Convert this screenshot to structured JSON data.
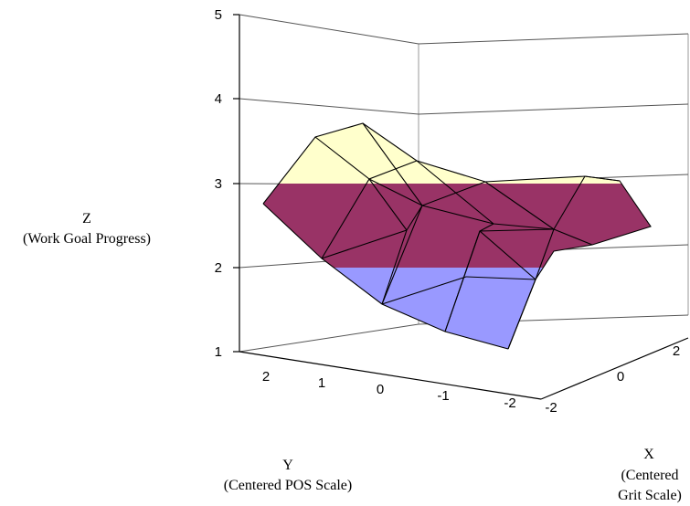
{
  "chart_data": {
    "type": "surface",
    "z_axis": {
      "title_line1": "Z",
      "title_line2": "(Work Goal Progress)",
      "ticks": [
        "1",
        "2",
        "3",
        "4",
        "5"
      ],
      "range": [
        1,
        5
      ]
    },
    "y_axis": {
      "title_line1": "Y",
      "title_line2": "(Centered POS Scale)",
      "ticks": [
        "2",
        "1",
        "0",
        "-1",
        "-2"
      ]
    },
    "x_axis": {
      "title_line1": "X",
      "title_line2": "(Centered",
      "title_line3": "Grit Scale)",
      "ticks": [
        "2",
        "0",
        "-2"
      ]
    },
    "bands": [
      {
        "range": [
          1,
          2
        ],
        "color": "#9999FF"
      },
      {
        "range": [
          2,
          3
        ],
        "color": "#993366"
      },
      {
        "range": [
          3,
          4
        ],
        "color": "#FFFFCC"
      }
    ]
  }
}
